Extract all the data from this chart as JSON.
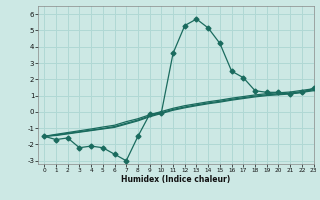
{
  "xlabel": "Humidex (Indice chaleur)",
  "xlim": [
    -0.5,
    23
  ],
  "ylim": [
    -3.2,
    6.5
  ],
  "xticks": [
    0,
    1,
    2,
    3,
    4,
    5,
    6,
    7,
    8,
    9,
    10,
    11,
    12,
    13,
    14,
    15,
    16,
    17,
    18,
    19,
    20,
    21,
    22,
    23
  ],
  "yticks": [
    -3,
    -2,
    -1,
    0,
    1,
    2,
    3,
    4,
    5,
    6
  ],
  "bg_color": "#cce8e4",
  "grid_color": "#b0d8d4",
  "line_color": "#1a6b5e",
  "line1_x": [
    0,
    1,
    2,
    3,
    4,
    5,
    6,
    7,
    8,
    9,
    10,
    11,
    12,
    13,
    14,
    15,
    16,
    17,
    18,
    19,
    20,
    21,
    22,
    23
  ],
  "line1_y": [
    -1.5,
    -1.7,
    -1.6,
    -2.2,
    -2.1,
    -2.2,
    -2.6,
    -3.0,
    -1.5,
    -0.15,
    -0.05,
    3.6,
    5.3,
    5.7,
    5.15,
    4.2,
    2.5,
    2.1,
    1.3,
    1.2,
    1.2,
    1.1,
    1.2,
    1.45
  ],
  "line2_x": [
    0,
    1,
    2,
    3,
    4,
    5,
    6,
    7,
    8,
    9,
    10,
    11,
    12,
    13,
    14,
    15,
    16,
    17,
    18,
    19,
    20,
    21,
    22,
    23
  ],
  "line2_y": [
    -1.5,
    -1.45,
    -1.35,
    -1.25,
    -1.15,
    -1.05,
    -0.95,
    -0.75,
    -0.55,
    -0.3,
    -0.1,
    0.1,
    0.25,
    0.38,
    0.5,
    0.6,
    0.72,
    0.82,
    0.92,
    1.0,
    1.05,
    1.1,
    1.2,
    1.3
  ],
  "line3_x": [
    0,
    1,
    2,
    3,
    4,
    5,
    6,
    7,
    8,
    9,
    10,
    11,
    12,
    13,
    14,
    15,
    16,
    17,
    18,
    19,
    20,
    21,
    22,
    23
  ],
  "line3_y": [
    -1.5,
    -1.42,
    -1.32,
    -1.22,
    -1.12,
    -1.02,
    -0.9,
    -0.7,
    -0.5,
    -0.25,
    -0.05,
    0.15,
    0.3,
    0.43,
    0.55,
    0.65,
    0.77,
    0.87,
    0.97,
    1.05,
    1.1,
    1.15,
    1.25,
    1.35
  ],
  "line4_x": [
    0,
    1,
    2,
    3,
    4,
    5,
    6,
    7,
    8,
    9,
    10,
    11,
    12,
    13,
    14,
    15,
    16,
    17,
    18,
    19,
    20,
    21,
    22,
    23
  ],
  "line4_y": [
    -1.5,
    -1.38,
    -1.27,
    -1.16,
    -1.05,
    -0.93,
    -0.82,
    -0.6,
    -0.42,
    -0.18,
    0.02,
    0.22,
    0.38,
    0.5,
    0.62,
    0.72,
    0.84,
    0.94,
    1.04,
    1.12,
    1.17,
    1.22,
    1.32,
    1.42
  ]
}
